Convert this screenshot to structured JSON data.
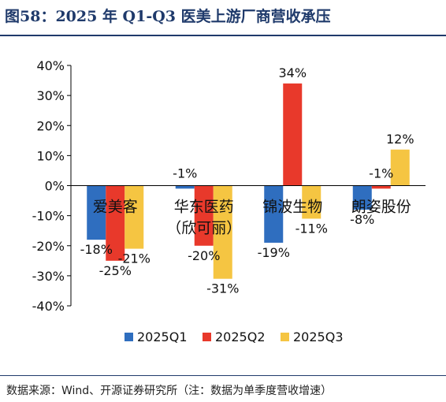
{
  "figure_title": "图58：2025 年 Q1-Q3 医美上游厂商营收承压",
  "source_note": "数据来源：Wind、开源证券研究所（注：数据为单季度营收增速）",
  "chart_data": {
    "type": "bar",
    "categories": [
      "爱美客",
      "华东医药（欣可丽）",
      "锦波生物",
      "朗姿股份"
    ],
    "category_lines": [
      [
        "爱美客"
      ],
      [
        "华东医药",
        "（欣可丽）"
      ],
      [
        "锦波生物"
      ],
      [
        "朗姿股份"
      ]
    ],
    "series": [
      {
        "name": "2025Q1",
        "values": [
          -18,
          -1,
          -19,
          -8
        ],
        "labels": [
          "-18%",
          "-1%",
          "-19%",
          "-8%"
        ],
        "color": "#2f6ebf"
      },
      {
        "name": "2025Q2",
        "values": [
          -25,
          -20,
          34,
          -1
        ],
        "labels": [
          "-25%",
          "-20%",
          "34%",
          "-1%"
        ],
        "color": "#e8392b"
      },
      {
        "name": "2025Q3",
        "values": [
          -21,
          -31,
          -11,
          12
        ],
        "labels": [
          "-21%",
          "-31%",
          "-11%",
          "12%"
        ],
        "color": "#f5c542"
      }
    ],
    "yticks": [
      "40%",
      "30%",
      "20%",
      "10%",
      "0%",
      "-10%",
      "-20%",
      "-30%",
      "-40%"
    ],
    "ylim": [
      -40,
      40
    ],
    "legend_position": "bottom",
    "grid": false
  }
}
